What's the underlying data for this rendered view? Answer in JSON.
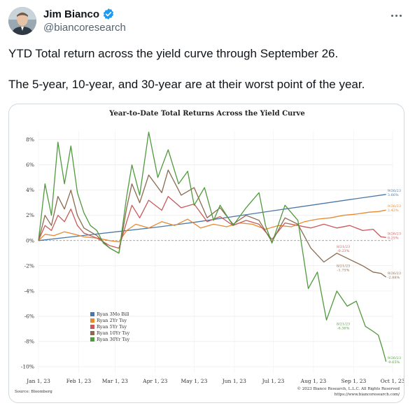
{
  "author": {
    "display_name": "Jim Bianco",
    "handle": "@biancoresearch",
    "verified_icon": "verified-badge-icon",
    "avatar_icon": "avatar-icon",
    "more_icon": "more-options-icon"
  },
  "tweet": {
    "line1": "YTD Total return across the yield curve through September 26.",
    "line2": "The 5-year, 10-year, and 30-year are at their worst point of the year."
  },
  "colors": {
    "accent": "#1d9bf0",
    "text": "#0f1419",
    "muted": "#536471"
  },
  "chart_data": {
    "type": "line",
    "title": "Year-to-Date Total Returns Across the Yield Curve",
    "xlabel": "",
    "ylabel": "",
    "x_ticks": [
      "Jan 1, 23",
      "Feb 1, 23",
      "Mar 1, 23",
      "Apr 1, 23",
      "May 1, 23",
      "Jun 1, 23",
      "Jul 1, 23",
      "Aug 1, 23",
      "Sep 1, 23",
      "Oct 1, 23"
    ],
    "y_ticks": [
      "8%",
      "6%",
      "4%",
      "2%",
      "0%",
      "-2%",
      "-4%",
      "-6%",
      "-8%",
      "-10%"
    ],
    "ylim": [
      -10.5,
      8.7
    ],
    "xlim": [
      0,
      273
    ],
    "grid": true,
    "zero_line": "dashed",
    "legend": "lower-left",
    "source": "Source: Bloomberg",
    "copyright": "© 2023 Bianco Research, L.L.C. All Rights Reserved",
    "website": "https://www.biancoresearch.com/",
    "series": [
      {
        "name": "Ryan 3Mo Bill",
        "color": "#4a78a6",
        "x": [
          0,
          30,
          60,
          90,
          120,
          150,
          180,
          210,
          240,
          268
        ],
        "values": [
          0,
          0.35,
          0.7,
          1.05,
          1.45,
          1.9,
          2.35,
          2.8,
          3.25,
          3.66
        ]
      },
      {
        "name": "Ryan 2Yr Tsy",
        "color": "#e8892f",
        "x": [
          0,
          5,
          12,
          20,
          28,
          35,
          45,
          55,
          62,
          68,
          75,
          85,
          95,
          105,
          115,
          125,
          135,
          145,
          155,
          165,
          175,
          185,
          195,
          205,
          215,
          225,
          235,
          245,
          255,
          262,
          268
        ],
        "values": [
          0,
          0.5,
          0.4,
          0.7,
          0.5,
          0.3,
          0.2,
          0.0,
          -0.1,
          0.8,
          1.3,
          1.0,
          1.5,
          1.2,
          1.7,
          1.0,
          1.3,
          1.1,
          1.4,
          1.3,
          0.9,
          1.2,
          1.1,
          1.5,
          1.7,
          1.8,
          2.0,
          2.1,
          2.25,
          2.3,
          2.42
        ]
      },
      {
        "name": "Ryan 5Yr Tsy",
        "color": "#c85a5a",
        "x": [
          0,
          5,
          10,
          15,
          20,
          25,
          30,
          35,
          45,
          55,
          62,
          68,
          72,
          78,
          85,
          95,
          100,
          110,
          120,
          130,
          140,
          150,
          160,
          170,
          180,
          190,
          200,
          210,
          220,
          230,
          240,
          250,
          258,
          264,
          268
        ],
        "values": [
          0,
          1.2,
          0.8,
          2.0,
          1.5,
          2.5,
          1.2,
          0.6,
          0.2,
          -0.4,
          -0.6,
          1.5,
          2.8,
          1.8,
          3.2,
          2.4,
          3.5,
          2.6,
          2.9,
          1.5,
          1.9,
          1.2,
          1.6,
          1.3,
          0.1,
          1.4,
          1.2,
          1.0,
          1.3,
          1.0,
          1.2,
          0.8,
          0.9,
          0.3,
          0.25
        ]
      },
      {
        "name": "Ryan 10Yr Tsy",
        "color": "#8c6a4f",
        "x": [
          0,
          5,
          10,
          15,
          20,
          25,
          30,
          35,
          45,
          55,
          62,
          68,
          72,
          78,
          85,
          95,
          100,
          110,
          120,
          130,
          140,
          150,
          160,
          170,
          180,
          190,
          200,
          210,
          220,
          230,
          240,
          250,
          258,
          264,
          268
        ],
        "values": [
          0,
          2.0,
          1.2,
          3.5,
          2.5,
          4.0,
          2.0,
          1.0,
          0.4,
          -0.6,
          -1.0,
          2.6,
          4.5,
          3.0,
          5.2,
          3.8,
          5.6,
          3.6,
          4.2,
          1.8,
          2.6,
          1.3,
          2.0,
          1.6,
          -0.1,
          1.8,
          1.3,
          -0.6,
          -1.7,
          -1.0,
          -1.5,
          -2.0,
          -2.5,
          -2.6,
          -2.9
        ]
      },
      {
        "name": "Ryan 30Yr Tsy",
        "color": "#4f9a3c",
        "x": [
          0,
          5,
          10,
          15,
          20,
          25,
          30,
          35,
          40,
          45,
          50,
          55,
          62,
          68,
          72,
          78,
          85,
          92,
          100,
          108,
          115,
          120,
          128,
          135,
          140,
          150,
          160,
          170,
          175,
          180,
          190,
          200,
          208,
          215,
          222,
          230,
          238,
          245,
          252,
          258,
          262,
          265,
          268
        ],
        "values": [
          0,
          4.5,
          2.0,
          7.8,
          4.5,
          7.5,
          3.8,
          2.2,
          1.2,
          0.8,
          -0.2,
          -0.6,
          -1.0,
          3.5,
          6.0,
          3.6,
          8.6,
          5.0,
          7.2,
          4.5,
          5.5,
          2.8,
          4.2,
          1.6,
          2.8,
          1.2,
          2.6,
          3.8,
          1.2,
          -0.2,
          2.8,
          1.6,
          -3.8,
          -2.5,
          -6.3,
          -4.0,
          -5.2,
          -4.8,
          -6.8,
          -7.2,
          -7.5,
          -8.5,
          -9.6
        ]
      }
    ],
    "end_labels": [
      {
        "date": "9/26/23",
        "value": "3.66%",
        "series": "Ryan 3Mo Bill"
      },
      {
        "date": "9/26/23",
        "value": "2.42%",
        "series": "Ryan 2Yr Tsy"
      },
      {
        "date": "9/26/23",
        "value": "0.25%",
        "series": "Ryan 5Yr Tsy"
      },
      {
        "date": "9/26/23",
        "value": "-2.88%",
        "series": "Ryan 10Yr Tsy"
      },
      {
        "date": "9/26/23",
        "value": "-9.65%",
        "series": "Ryan 30Yr Tsy"
      }
    ],
    "low_labels": [
      {
        "date": "8/21/23",
        "value": "-1.75%",
        "series": "Ryan 10Yr Tsy",
        "x": 235,
        "y": -1.75
      },
      {
        "date": "8/21/23",
        "value": "-0.23%",
        "series": "Ryan 5Yr Tsy",
        "x": 235,
        "y": -0.23
      },
      {
        "date": "8/21/23",
        "value": "-6.36%",
        "series": "Ryan 30Yr Tsy",
        "x": 235,
        "y": -6.36
      }
    ]
  }
}
